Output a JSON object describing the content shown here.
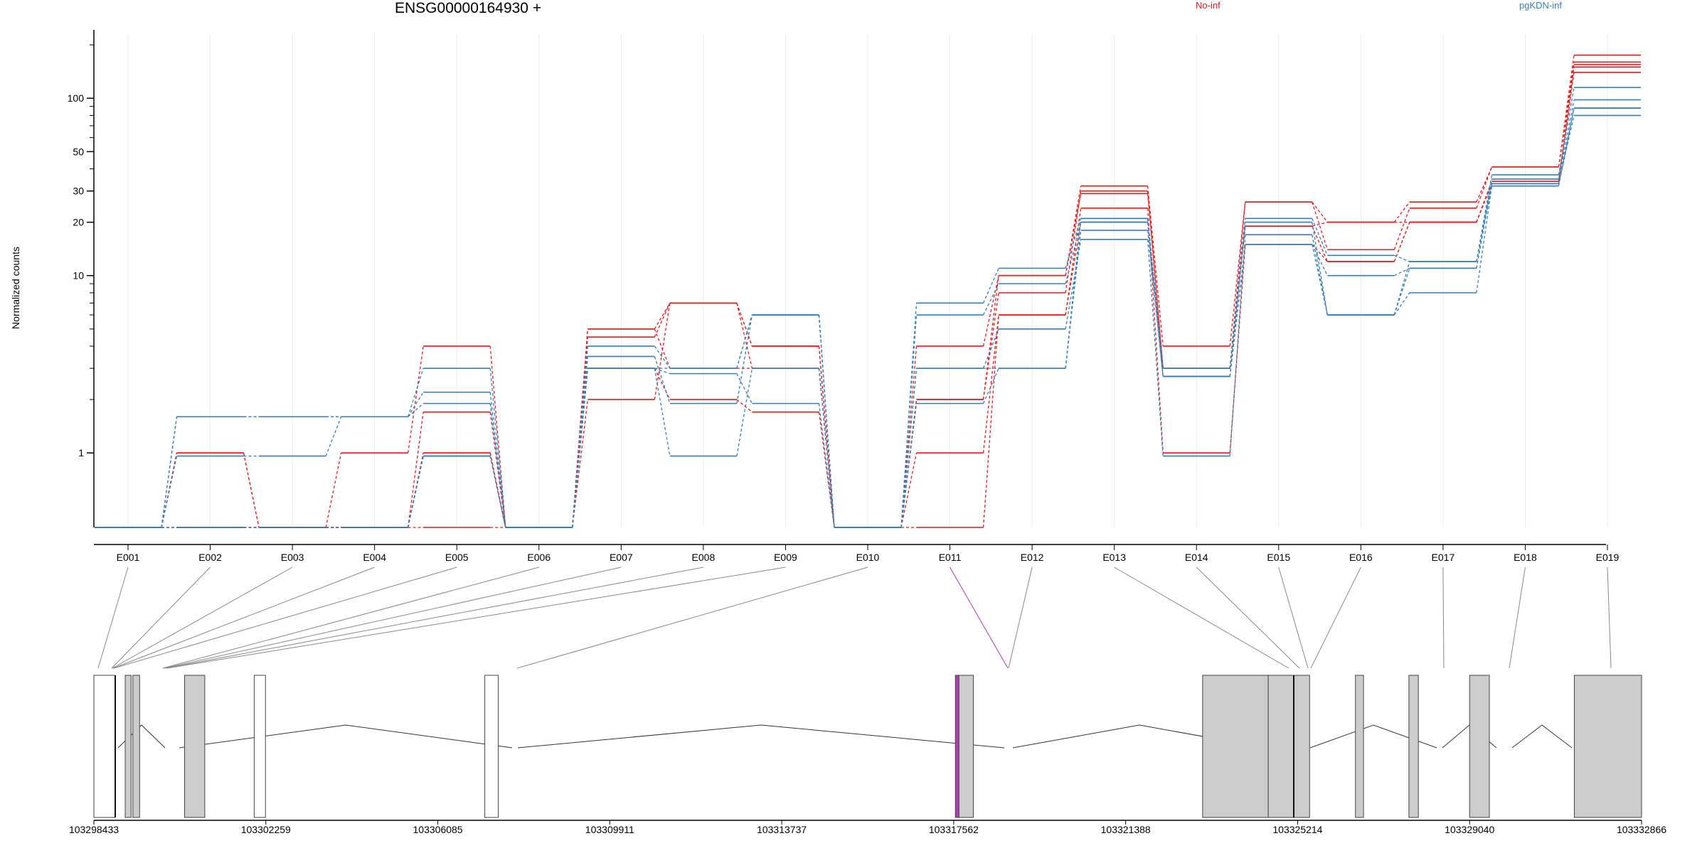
{
  "chart_data": {
    "type": "line",
    "title": "ENSG00000164930 +",
    "ylabel": "Normalized counts",
    "yscale": "log",
    "y_floor_value": 0.38,
    "ylim": [
      0.38,
      230
    ],
    "y_ticks": [
      1,
      10,
      20,
      30,
      50,
      100
    ],
    "categories": [
      "E001",
      "E002",
      "E003",
      "E004",
      "E005",
      "E006",
      "E007",
      "E008",
      "E009",
      "E010",
      "E011",
      "E012",
      "E013",
      "E014",
      "E015",
      "E016",
      "E017",
      "E018",
      "E019"
    ],
    "grid": "vertical",
    "legend": [
      {
        "label": "No-inf",
        "color": "#e41a1c"
      },
      {
        "label": "pgKDN-inf",
        "color": "#377eb8"
      }
    ],
    "series": [
      {
        "group": "No-inf",
        "values": [
          0.38,
          1.0,
          0.38,
          1.0,
          4.0,
          0.38,
          5.0,
          7.0,
          4.0,
          0.38,
          4.0,
          10.0,
          32,
          4.0,
          26,
          20,
          26,
          41,
          175
        ]
      },
      {
        "group": "No-inf",
        "values": [
          0.38,
          0.38,
          0.38,
          0.38,
          1.0,
          0.38,
          4.5,
          7.0,
          3.0,
          0.38,
          2.0,
          8.0,
          30,
          3.0,
          19,
          12,
          20,
          34,
          150
        ]
      },
      {
        "group": "No-inf",
        "values": [
          0.38,
          0.38,
          0.38,
          0.38,
          1.7,
          0.38,
          3.0,
          2.0,
          1.7,
          0.38,
          1.0,
          6.0,
          24,
          1.0,
          15,
          12,
          20,
          33,
          140
        ]
      },
      {
        "group": "No-inf",
        "values": [
          0.38,
          0.38,
          0.38,
          0.38,
          0.38,
          0.38,
          2.0,
          7.0,
          4.0,
          0.38,
          2.0,
          10.0,
          29,
          3.0,
          26,
          14,
          24,
          41,
          155
        ]
      },
      {
        "group": "No-inf",
        "values": [
          0.38,
          1.0,
          0.38,
          0.38,
          1.0,
          0.38,
          5.0,
          3.0,
          3.0,
          0.38,
          0.38,
          6.0,
          20,
          3.0,
          19,
          20,
          20,
          34,
          160
        ]
      },
      {
        "group": "pgKDN-inf",
        "values": [
          0.38,
          1.6,
          1.6,
          1.6,
          3.0,
          0.38,
          4.0,
          3.0,
          6.0,
          0.38,
          7.0,
          11,
          21,
          3.0,
          21,
          13,
          12,
          37,
          115
        ]
      },
      {
        "group": "pgKDN-inf",
        "values": [
          0.38,
          0.96,
          0.96,
          1.6,
          2.2,
          0.38,
          3.5,
          1.9,
          6.0,
          0.38,
          6.0,
          9.0,
          20,
          2.7,
          20,
          6.0,
          11,
          35,
          98
        ]
      },
      {
        "group": "pgKDN-inf",
        "values": [
          0.38,
          0.38,
          0.38,
          0.38,
          0.96,
          0.38,
          3.0,
          0.96,
          3.0,
          0.38,
          3.0,
          5.0,
          16,
          0.96,
          17,
          6.0,
          8.0,
          32,
          88
        ]
      },
      {
        "group": "pgKDN-inf",
        "values": [
          0.38,
          1.6,
          1.6,
          1.6,
          1.9,
          0.38,
          3.0,
          2.8,
          1.9,
          0.38,
          1.9,
          3.0,
          18,
          2.7,
          15,
          10,
          11,
          33,
          80
        ]
      },
      {
        "group": "pgKDN-inf",
        "values": [
          0.38,
          0.38,
          0.38,
          0.38,
          0.96,
          0.38,
          3.0,
          3.0,
          6.0,
          0.38,
          3.0,
          3.0,
          21,
          2.7,
          15,
          6.0,
          12,
          33,
          88
        ]
      }
    ],
    "gene_model": {
      "genomic_ticks": [
        "103298433",
        "103302259",
        "103306085",
        "103309911",
        "103313737",
        "103317562",
        "103321388",
        "103325214",
        "103329040",
        "103332866"
      ],
      "genomic_range": [
        103298433,
        103332866
      ],
      "highlighted_exon": "E011",
      "highlight_color": "#b13bb8",
      "exon_fill": "#cccccc"
    }
  }
}
